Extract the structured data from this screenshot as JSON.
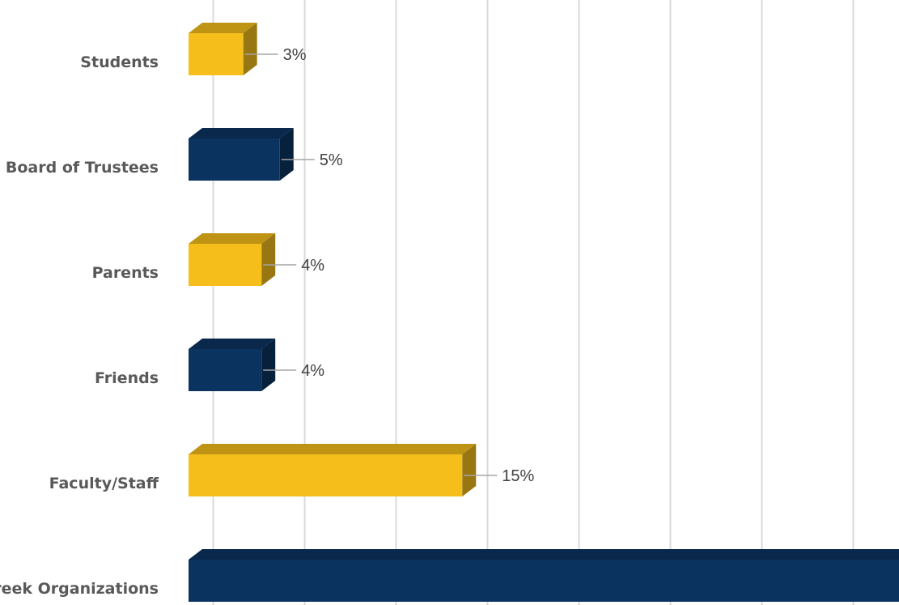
{
  "chart_data": {
    "type": "bar",
    "orientation": "horizontal",
    "style": "3d",
    "categories": [
      "Students",
      "Board of Trustees",
      "Parents",
      "Friends",
      "Faculty/Staff",
      "Greek Organizations"
    ],
    "values": [
      3,
      5,
      4,
      4,
      15,
      40
    ],
    "value_labels": [
      "3%",
      "5%",
      "4%",
      "4%",
      "15%",
      ""
    ],
    "colors": [
      "#F5BE1B",
      "#0B3360",
      "#F5BE1B",
      "#0B3360",
      "#F5BE1B",
      "#0B3360"
    ],
    "gridlines": true
  }
}
